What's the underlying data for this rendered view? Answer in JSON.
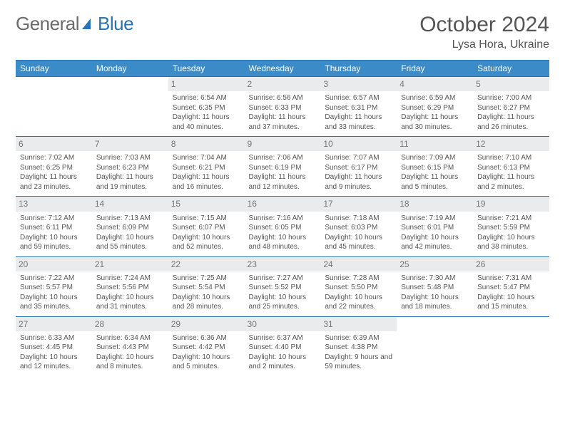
{
  "brand": {
    "part1": "General",
    "part2": "Blue"
  },
  "title": "October 2024",
  "location": "Lysa Hora, Ukraine",
  "colors": {
    "accent": "#3b8bc9",
    "border": "#2a73b8",
    "daynum_bg": "#e9ebec"
  },
  "weekdays": [
    "Sunday",
    "Monday",
    "Tuesday",
    "Wednesday",
    "Thursday",
    "Friday",
    "Saturday"
  ],
  "weeks": [
    [
      null,
      null,
      {
        "n": "1",
        "sr": "Sunrise: 6:54 AM",
        "ss": "Sunset: 6:35 PM",
        "dl": "Daylight: 11 hours and 40 minutes."
      },
      {
        "n": "2",
        "sr": "Sunrise: 6:56 AM",
        "ss": "Sunset: 6:33 PM",
        "dl": "Daylight: 11 hours and 37 minutes."
      },
      {
        "n": "3",
        "sr": "Sunrise: 6:57 AM",
        "ss": "Sunset: 6:31 PM",
        "dl": "Daylight: 11 hours and 33 minutes."
      },
      {
        "n": "4",
        "sr": "Sunrise: 6:59 AM",
        "ss": "Sunset: 6:29 PM",
        "dl": "Daylight: 11 hours and 30 minutes."
      },
      {
        "n": "5",
        "sr": "Sunrise: 7:00 AM",
        "ss": "Sunset: 6:27 PM",
        "dl": "Daylight: 11 hours and 26 minutes."
      }
    ],
    [
      {
        "n": "6",
        "sr": "Sunrise: 7:02 AM",
        "ss": "Sunset: 6:25 PM",
        "dl": "Daylight: 11 hours and 23 minutes."
      },
      {
        "n": "7",
        "sr": "Sunrise: 7:03 AM",
        "ss": "Sunset: 6:23 PM",
        "dl": "Daylight: 11 hours and 19 minutes."
      },
      {
        "n": "8",
        "sr": "Sunrise: 7:04 AM",
        "ss": "Sunset: 6:21 PM",
        "dl": "Daylight: 11 hours and 16 minutes."
      },
      {
        "n": "9",
        "sr": "Sunrise: 7:06 AM",
        "ss": "Sunset: 6:19 PM",
        "dl": "Daylight: 11 hours and 12 minutes."
      },
      {
        "n": "10",
        "sr": "Sunrise: 7:07 AM",
        "ss": "Sunset: 6:17 PM",
        "dl": "Daylight: 11 hours and 9 minutes."
      },
      {
        "n": "11",
        "sr": "Sunrise: 7:09 AM",
        "ss": "Sunset: 6:15 PM",
        "dl": "Daylight: 11 hours and 5 minutes."
      },
      {
        "n": "12",
        "sr": "Sunrise: 7:10 AM",
        "ss": "Sunset: 6:13 PM",
        "dl": "Daylight: 11 hours and 2 minutes."
      }
    ],
    [
      {
        "n": "13",
        "sr": "Sunrise: 7:12 AM",
        "ss": "Sunset: 6:11 PM",
        "dl": "Daylight: 10 hours and 59 minutes."
      },
      {
        "n": "14",
        "sr": "Sunrise: 7:13 AM",
        "ss": "Sunset: 6:09 PM",
        "dl": "Daylight: 10 hours and 55 minutes."
      },
      {
        "n": "15",
        "sr": "Sunrise: 7:15 AM",
        "ss": "Sunset: 6:07 PM",
        "dl": "Daylight: 10 hours and 52 minutes."
      },
      {
        "n": "16",
        "sr": "Sunrise: 7:16 AM",
        "ss": "Sunset: 6:05 PM",
        "dl": "Daylight: 10 hours and 48 minutes."
      },
      {
        "n": "17",
        "sr": "Sunrise: 7:18 AM",
        "ss": "Sunset: 6:03 PM",
        "dl": "Daylight: 10 hours and 45 minutes."
      },
      {
        "n": "18",
        "sr": "Sunrise: 7:19 AM",
        "ss": "Sunset: 6:01 PM",
        "dl": "Daylight: 10 hours and 42 minutes."
      },
      {
        "n": "19",
        "sr": "Sunrise: 7:21 AM",
        "ss": "Sunset: 5:59 PM",
        "dl": "Daylight: 10 hours and 38 minutes."
      }
    ],
    [
      {
        "n": "20",
        "sr": "Sunrise: 7:22 AM",
        "ss": "Sunset: 5:57 PM",
        "dl": "Daylight: 10 hours and 35 minutes."
      },
      {
        "n": "21",
        "sr": "Sunrise: 7:24 AM",
        "ss": "Sunset: 5:56 PM",
        "dl": "Daylight: 10 hours and 31 minutes."
      },
      {
        "n": "22",
        "sr": "Sunrise: 7:25 AM",
        "ss": "Sunset: 5:54 PM",
        "dl": "Daylight: 10 hours and 28 minutes."
      },
      {
        "n": "23",
        "sr": "Sunrise: 7:27 AM",
        "ss": "Sunset: 5:52 PM",
        "dl": "Daylight: 10 hours and 25 minutes."
      },
      {
        "n": "24",
        "sr": "Sunrise: 7:28 AM",
        "ss": "Sunset: 5:50 PM",
        "dl": "Daylight: 10 hours and 22 minutes."
      },
      {
        "n": "25",
        "sr": "Sunrise: 7:30 AM",
        "ss": "Sunset: 5:48 PM",
        "dl": "Daylight: 10 hours and 18 minutes."
      },
      {
        "n": "26",
        "sr": "Sunrise: 7:31 AM",
        "ss": "Sunset: 5:47 PM",
        "dl": "Daylight: 10 hours and 15 minutes."
      }
    ],
    [
      {
        "n": "27",
        "sr": "Sunrise: 6:33 AM",
        "ss": "Sunset: 4:45 PM",
        "dl": "Daylight: 10 hours and 12 minutes."
      },
      {
        "n": "28",
        "sr": "Sunrise: 6:34 AM",
        "ss": "Sunset: 4:43 PM",
        "dl": "Daylight: 10 hours and 8 minutes."
      },
      {
        "n": "29",
        "sr": "Sunrise: 6:36 AM",
        "ss": "Sunset: 4:42 PM",
        "dl": "Daylight: 10 hours and 5 minutes."
      },
      {
        "n": "30",
        "sr": "Sunrise: 6:37 AM",
        "ss": "Sunset: 4:40 PM",
        "dl": "Daylight: 10 hours and 2 minutes."
      },
      {
        "n": "31",
        "sr": "Sunrise: 6:39 AM",
        "ss": "Sunset: 4:38 PM",
        "dl": "Daylight: 9 hours and 59 minutes."
      },
      null,
      null
    ]
  ]
}
